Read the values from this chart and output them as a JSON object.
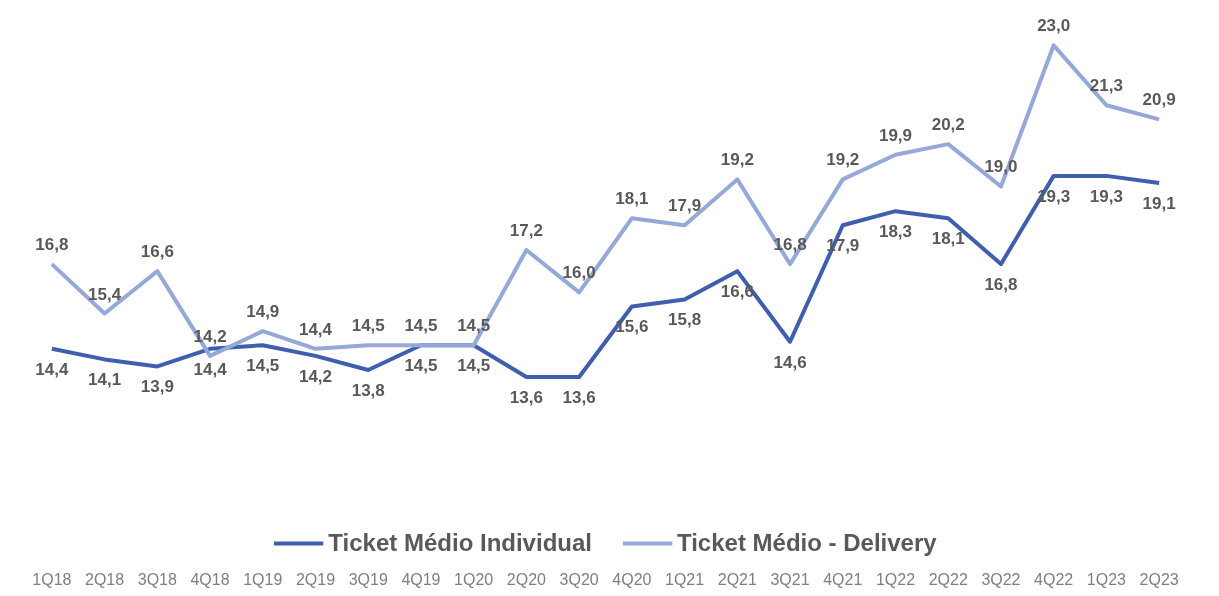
{
  "chart_data": {
    "type": "line",
    "categories": [
      "1Q18",
      "2Q18",
      "3Q18",
      "4Q18",
      "1Q19",
      "2Q19",
      "3Q19",
      "4Q19",
      "1Q20",
      "2Q20",
      "3Q20",
      "4Q20",
      "1Q21",
      "2Q21",
      "3Q21",
      "4Q21",
      "1Q22",
      "2Q22",
      "3Q22",
      "4Q22",
      "1Q23",
      "2Q23"
    ],
    "series": [
      {
        "name": "Ticket Médio Individual",
        "color": "#3f5fae",
        "values": [
          14.4,
          14.1,
          13.9,
          14.4,
          14.5,
          14.2,
          13.8,
          14.5,
          14.5,
          13.6,
          13.6,
          15.6,
          15.8,
          16.6,
          14.6,
          17.9,
          18.3,
          18.1,
          16.8,
          19.3,
          19.3,
          19.1
        ],
        "value_labels": [
          "14,4",
          "14,1",
          "13,9",
          "14,4",
          "14,5",
          "14,2",
          "13,8",
          "14,5",
          "14,5",
          "13,6",
          "13,6",
          "15,6",
          "15,8",
          "16,6",
          "14,6",
          "17,9",
          "18,3",
          "18,1",
          "16,8",
          "19,3",
          "19,3",
          "19,1"
        ]
      },
      {
        "name": "Ticket Médio - Delivery",
        "color": "#95a8d8",
        "values": [
          16.8,
          15.4,
          16.6,
          14.2,
          14.9,
          14.4,
          14.5,
          14.5,
          14.5,
          17.2,
          16.0,
          18.1,
          17.9,
          19.2,
          16.8,
          19.2,
          19.9,
          20.2,
          19.0,
          23.0,
          21.3,
          20.9
        ],
        "value_labels": [
          "16,8",
          "15,4",
          "16,6",
          "14,2",
          "14,9",
          "14,4",
          "14,5",
          "14,5",
          "14,5",
          "17,2",
          "16,0",
          "18,1",
          "17,9",
          "19,2",
          "16,8",
          "19,2",
          "19,9",
          "20,2",
          "19,0",
          "23,0",
          "21,3",
          "20,9"
        ]
      }
    ],
    "legend": "bottom",
    "grid": false,
    "marker": "none",
    "line_style": "solid"
  }
}
